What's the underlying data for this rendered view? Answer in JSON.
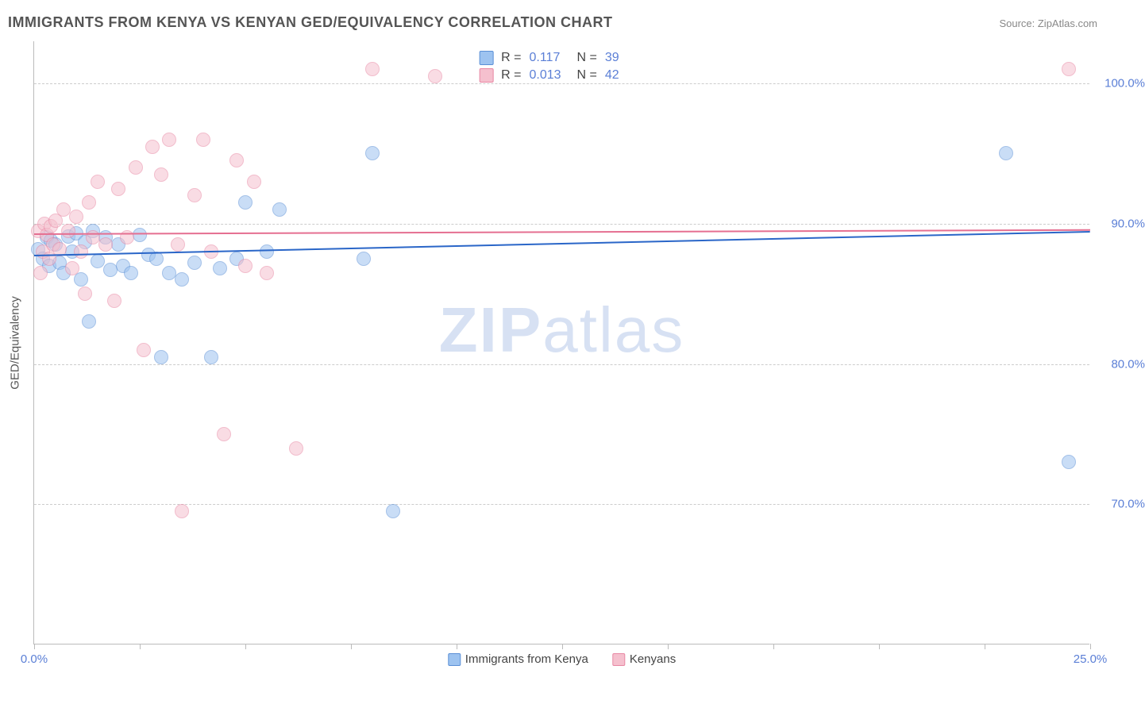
{
  "title": "IMMIGRANTS FROM KENYA VS KENYAN GED/EQUIVALENCY CORRELATION CHART",
  "source_label": "Source: ZipAtlas.com",
  "y_axis_title": "GED/Equivalency",
  "watermark_bold": "ZIP",
  "watermark_light": "atlas",
  "chart": {
    "type": "scatter",
    "background_color": "#ffffff",
    "grid_color": "#cccccc",
    "axis_color": "#bbbbbb",
    "xlim": [
      0,
      25
    ],
    "ylim": [
      60,
      103
    ],
    "y_ticks": [
      {
        "v": 70.0,
        "label": "70.0%"
      },
      {
        "v": 80.0,
        "label": "80.0%"
      },
      {
        "v": 90.0,
        "label": "90.0%"
      },
      {
        "v": 100.0,
        "label": "100.0%"
      }
    ],
    "x_ticks": [
      0,
      2.5,
      5,
      7.5,
      10,
      12.5,
      15,
      17.5,
      20,
      22.5,
      25
    ],
    "x_tick_labels": [
      {
        "v": 0,
        "label": "0.0%"
      },
      {
        "v": 25,
        "label": "25.0%"
      }
    ],
    "tick_label_color": "#5b7fd6",
    "tick_label_fontsize": 15,
    "point_radius": 9,
    "point_opacity": 0.55,
    "series": [
      {
        "id": "immigrants",
        "name": "Immigrants from Kenya",
        "fill_color": "#9dc3f0",
        "stroke_color": "#5a8fd6",
        "line_color": "#2a66c8",
        "R": "0.117",
        "N": "39",
        "trend": {
          "x0": 0,
          "y0": 87.8,
          "x1": 25,
          "y1": 89.5
        },
        "points": [
          [
            0.1,
            88.2
          ],
          [
            0.2,
            87.5
          ],
          [
            0.3,
            89.0
          ],
          [
            0.35,
            87.0
          ],
          [
            0.4,
            88.8
          ],
          [
            0.5,
            88.5
          ],
          [
            0.6,
            87.2
          ],
          [
            0.7,
            86.5
          ],
          [
            0.8,
            89.1
          ],
          [
            0.9,
            88.0
          ],
          [
            1.0,
            89.3
          ],
          [
            1.1,
            86.0
          ],
          [
            1.2,
            88.7
          ],
          [
            1.3,
            83.0
          ],
          [
            1.4,
            89.5
          ],
          [
            1.5,
            87.3
          ],
          [
            1.7,
            89.0
          ],
          [
            1.8,
            86.7
          ],
          [
            2.0,
            88.5
          ],
          [
            2.1,
            87.0
          ],
          [
            2.3,
            86.5
          ],
          [
            2.5,
            89.2
          ],
          [
            2.7,
            87.8
          ],
          [
            2.9,
            87.5
          ],
          [
            3.0,
            80.5
          ],
          [
            3.2,
            86.5
          ],
          [
            3.5,
            86.0
          ],
          [
            3.8,
            87.2
          ],
          [
            4.2,
            80.5
          ],
          [
            4.4,
            86.8
          ],
          [
            4.8,
            87.5
          ],
          [
            5.0,
            91.5
          ],
          [
            5.5,
            88.0
          ],
          [
            5.8,
            91.0
          ],
          [
            7.8,
            87.5
          ],
          [
            8.0,
            95.0
          ],
          [
            8.5,
            69.5
          ],
          [
            23.0,
            95.0
          ],
          [
            24.5,
            73.0
          ]
        ]
      },
      {
        "id": "kenyans",
        "name": "Kenyans",
        "fill_color": "#f5c0ce",
        "stroke_color": "#e887a3",
        "line_color": "#e56f91",
        "R": "0.013",
        "N": "42",
        "trend": {
          "x0": 0,
          "y0": 89.3,
          "x1": 25,
          "y1": 89.6
        },
        "points": [
          [
            0.1,
            89.5
          ],
          [
            0.15,
            86.5
          ],
          [
            0.2,
            88.0
          ],
          [
            0.25,
            90.0
          ],
          [
            0.3,
            89.2
          ],
          [
            0.35,
            87.5
          ],
          [
            0.4,
            89.8
          ],
          [
            0.45,
            88.5
          ],
          [
            0.5,
            90.2
          ],
          [
            0.6,
            88.2
          ],
          [
            0.7,
            91.0
          ],
          [
            0.8,
            89.5
          ],
          [
            0.9,
            86.8
          ],
          [
            1.0,
            90.5
          ],
          [
            1.1,
            88.0
          ],
          [
            1.2,
            85.0
          ],
          [
            1.3,
            91.5
          ],
          [
            1.4,
            89.0
          ],
          [
            1.5,
            93.0
          ],
          [
            1.7,
            88.5
          ],
          [
            1.9,
            84.5
          ],
          [
            2.0,
            92.5
          ],
          [
            2.2,
            89.0
          ],
          [
            2.4,
            94.0
          ],
          [
            2.6,
            81.0
          ],
          [
            2.8,
            95.5
          ],
          [
            3.0,
            93.5
          ],
          [
            3.2,
            96.0
          ],
          [
            3.4,
            88.5
          ],
          [
            3.5,
            69.5
          ],
          [
            3.8,
            92.0
          ],
          [
            4.0,
            96.0
          ],
          [
            4.2,
            88.0
          ],
          [
            4.5,
            75.0
          ],
          [
            4.8,
            94.5
          ],
          [
            5.0,
            87.0
          ],
          [
            5.2,
            93.0
          ],
          [
            5.5,
            86.5
          ],
          [
            6.2,
            74.0
          ],
          [
            8.0,
            101.0
          ],
          [
            9.5,
            100.5
          ],
          [
            24.5,
            101.0
          ]
        ]
      }
    ]
  },
  "legend_labels": {
    "R": "R =",
    "N": "N ="
  }
}
